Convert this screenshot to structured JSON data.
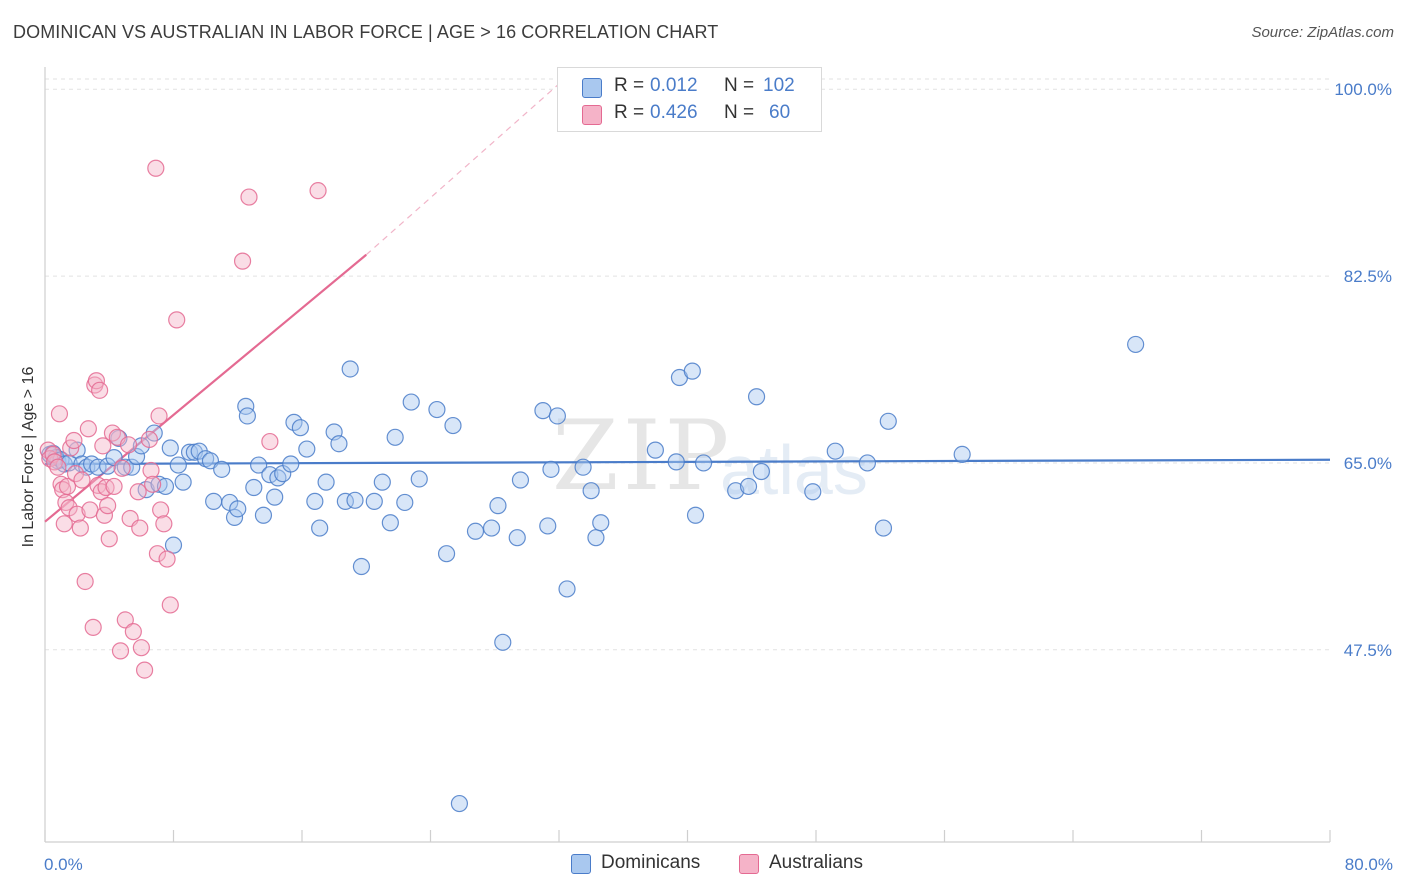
{
  "title": "DOMINICAN VS AUSTRALIAN IN LABOR FORCE | AGE > 16 CORRELATION CHART",
  "source": "Source: ZipAtlas.com",
  "watermark": {
    "zip": "ZIP",
    "atlas": "atlas"
  },
  "legend": {
    "rows": [
      {
        "r_label": "R =",
        "r_value": "0.012",
        "n_label": "N =",
        "n_value": "102",
        "color": "#a9c8ef"
      },
      {
        "r_label": "R =",
        "r_value": "0.426",
        "n_label": "N =",
        "n_value": "60",
        "color": "#f5b3c8"
      }
    ]
  },
  "bottom_legend": [
    {
      "label": "Dominicans",
      "color": "#a9c8ef"
    },
    {
      "label": "Australians",
      "color": "#f5b3c8"
    }
  ],
  "chart_data": {
    "type": "scatter",
    "title": "DOMINICAN VS AUSTRALIAN IN LABOR FORCE | AGE > 16 CORRELATION CHART",
    "xlabel": "",
    "ylabel": "In Labor Force | Age > 16",
    "x_tick_labels": [
      "0.0%",
      "80.0%"
    ],
    "y_tick_labels": [
      "100.0%",
      "82.5%",
      "65.0%",
      "47.5%"
    ],
    "y_ticks": [
      100.0,
      82.5,
      65.0,
      47.5
    ],
    "xlim": [
      0,
      80
    ],
    "ylim": [
      29.5,
      101.8
    ],
    "grid": true,
    "series": [
      {
        "name": "Dominicans",
        "color": "#4a7cc9",
        "fill": "#a9c8ef",
        "trend": {
          "x": [
            0,
            80
          ],
          "y": [
            64.9,
            65.3
          ]
        },
        "points": [
          [
            0.3,
            65.8
          ],
          [
            0.5,
            65.9
          ],
          [
            0.7,
            65.5
          ],
          [
            0.8,
            65.2
          ],
          [
            1.0,
            65.3
          ],
          [
            1.2,
            64.9
          ],
          [
            1.5,
            65.0
          ],
          [
            2.0,
            66.2
          ],
          [
            2.3,
            64.9
          ],
          [
            2.6,
            64.6
          ],
          [
            2.9,
            64.9
          ],
          [
            3.3,
            64.6
          ],
          [
            3.9,
            64.7
          ],
          [
            4.3,
            65.5
          ],
          [
            4.6,
            67.3
          ],
          [
            5.0,
            64.6
          ],
          [
            5.4,
            64.6
          ],
          [
            5.7,
            65.6
          ],
          [
            6.0,
            66.6
          ],
          [
            6.3,
            62.5
          ],
          [
            6.8,
            67.8
          ],
          [
            7.1,
            63.0
          ],
          [
            7.5,
            62.8
          ],
          [
            7.8,
            66.4
          ],
          [
            8.0,
            57.3
          ],
          [
            8.3,
            64.8
          ],
          [
            8.6,
            63.2
          ],
          [
            9.0,
            66.0
          ],
          [
            9.3,
            66.0
          ],
          [
            9.6,
            66.1
          ],
          [
            10.0,
            65.4
          ],
          [
            10.3,
            65.2
          ],
          [
            10.5,
            61.4
          ],
          [
            11.0,
            64.4
          ],
          [
            11.5,
            61.3
          ],
          [
            11.8,
            59.9
          ],
          [
            12.0,
            60.7
          ],
          [
            12.5,
            70.3
          ],
          [
            12.6,
            69.4
          ],
          [
            13.0,
            62.7
          ],
          [
            13.3,
            64.8
          ],
          [
            13.6,
            60.1
          ],
          [
            14.0,
            63.9
          ],
          [
            14.3,
            61.8
          ],
          [
            14.5,
            63.6
          ],
          [
            14.8,
            64.0
          ],
          [
            15.3,
            64.9
          ],
          [
            15.5,
            68.8
          ],
          [
            15.9,
            68.3
          ],
          [
            16.3,
            66.3
          ],
          [
            16.8,
            61.4
          ],
          [
            17.1,
            58.9
          ],
          [
            17.5,
            63.2
          ],
          [
            18.0,
            67.9
          ],
          [
            18.3,
            66.8
          ],
          [
            18.7,
            61.4
          ],
          [
            19.0,
            73.8
          ],
          [
            19.3,
            61.5
          ],
          [
            19.7,
            55.3
          ],
          [
            20.5,
            61.4
          ],
          [
            21.0,
            63.2
          ],
          [
            21.5,
            59.4
          ],
          [
            21.8,
            67.4
          ],
          [
            22.4,
            61.3
          ],
          [
            22.8,
            70.7
          ],
          [
            23.3,
            63.5
          ],
          [
            24.4,
            70.0
          ],
          [
            25.0,
            56.5
          ],
          [
            25.4,
            68.5
          ],
          [
            25.8,
            33.1
          ],
          [
            26.8,
            58.6
          ],
          [
            27.8,
            58.9
          ],
          [
            28.2,
            61.0
          ],
          [
            28.5,
            48.2
          ],
          [
            29.4,
            58.0
          ],
          [
            29.6,
            63.4
          ],
          [
            31.0,
            69.9
          ],
          [
            31.3,
            59.1
          ],
          [
            31.5,
            64.4
          ],
          [
            31.9,
            69.4
          ],
          [
            32.5,
            53.2
          ],
          [
            33.5,
            64.6
          ],
          [
            34.0,
            62.4
          ],
          [
            34.3,
            58.0
          ],
          [
            34.6,
            59.4
          ],
          [
            38.0,
            66.2
          ],
          [
            39.3,
            65.1
          ],
          [
            39.5,
            73.0
          ],
          [
            40.3,
            73.6
          ],
          [
            40.5,
            60.1
          ],
          [
            41.0,
            65.0
          ],
          [
            43.0,
            62.4
          ],
          [
            43.8,
            62.8
          ],
          [
            44.3,
            71.2
          ],
          [
            44.6,
            64.2
          ],
          [
            47.8,
            62.3
          ],
          [
            49.2,
            66.1
          ],
          [
            51.2,
            65.0
          ],
          [
            52.2,
            58.9
          ],
          [
            52.5,
            68.9
          ],
          [
            57.1,
            65.8
          ],
          [
            67.9,
            76.1
          ]
        ]
      },
      {
        "name": "Australians",
        "color": "#e46a92",
        "fill": "#f5b3c8",
        "trend": {
          "x": [
            0,
            20.0
          ],
          "y": [
            59.5,
            84.5
          ]
        },
        "trend_dashed": {
          "x": [
            20.0,
            32.0
          ],
          "y": [
            84.5,
            100.5
          ]
        },
        "points": [
          [
            0.2,
            66.2
          ],
          [
            0.3,
            65.4
          ],
          [
            0.5,
            65.8
          ],
          [
            0.6,
            65.1
          ],
          [
            0.8,
            64.6
          ],
          [
            0.9,
            69.6
          ],
          [
            1.0,
            63.0
          ],
          [
            1.1,
            62.5
          ],
          [
            1.2,
            59.3
          ],
          [
            1.3,
            61.3
          ],
          [
            1.4,
            62.8
          ],
          [
            1.5,
            60.8
          ],
          [
            1.6,
            66.4
          ],
          [
            1.8,
            67.1
          ],
          [
            1.9,
            64.0
          ],
          [
            2.0,
            60.2
          ],
          [
            2.2,
            58.9
          ],
          [
            2.3,
            63.4
          ],
          [
            2.5,
            53.9
          ],
          [
            2.7,
            68.2
          ],
          [
            2.8,
            60.6
          ],
          [
            3.0,
            49.6
          ],
          [
            3.1,
            72.3
          ],
          [
            3.2,
            72.7
          ],
          [
            3.3,
            62.9
          ],
          [
            3.4,
            71.8
          ],
          [
            3.5,
            62.3
          ],
          [
            3.6,
            66.6
          ],
          [
            3.7,
            60.1
          ],
          [
            3.8,
            62.7
          ],
          [
            3.9,
            61.0
          ],
          [
            4.0,
            57.9
          ],
          [
            4.2,
            67.8
          ],
          [
            4.3,
            62.8
          ],
          [
            4.5,
            67.4
          ],
          [
            4.7,
            47.4
          ],
          [
            4.8,
            64.5
          ],
          [
            5.0,
            50.3
          ],
          [
            5.2,
            66.7
          ],
          [
            5.3,
            59.8
          ],
          [
            5.5,
            49.2
          ],
          [
            5.8,
            62.3
          ],
          [
            5.9,
            58.9
          ],
          [
            6.0,
            47.7
          ],
          [
            6.2,
            45.6
          ],
          [
            6.5,
            67.2
          ],
          [
            6.6,
            64.3
          ],
          [
            6.7,
            63.0
          ],
          [
            6.9,
            92.6
          ],
          [
            7.0,
            56.5
          ],
          [
            7.1,
            69.4
          ],
          [
            7.2,
            60.6
          ],
          [
            7.4,
            59.3
          ],
          [
            7.6,
            56.0
          ],
          [
            7.8,
            51.7
          ],
          [
            8.2,
            78.4
          ],
          [
            12.3,
            83.9
          ],
          [
            12.7,
            89.9
          ],
          [
            17.0,
            90.5
          ],
          [
            14.0,
            67.0
          ]
        ]
      }
    ]
  }
}
